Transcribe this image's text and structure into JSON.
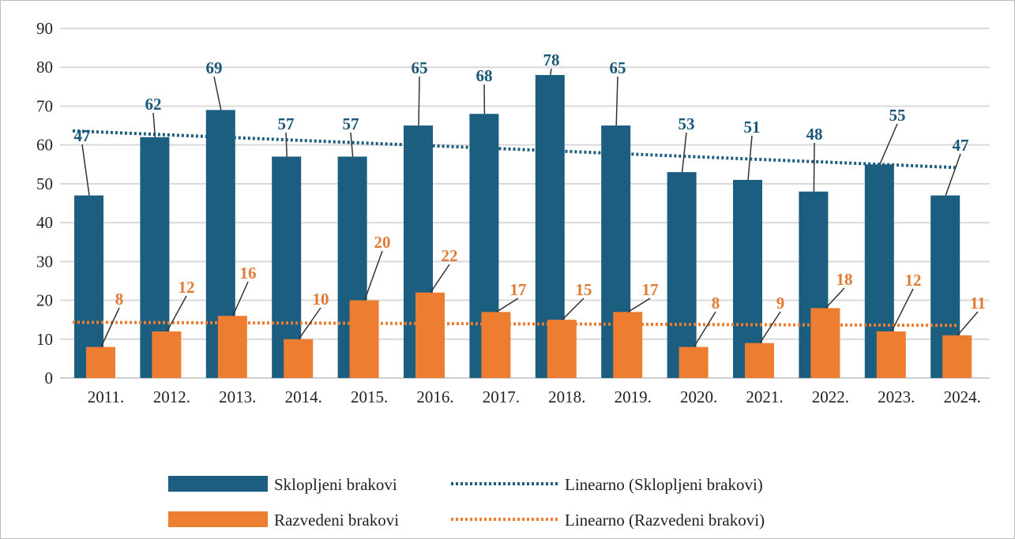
{
  "chart_data": {
    "type": "bar",
    "title": "",
    "xlabel": "",
    "ylabel": "",
    "ylim": [
      0,
      90
    ],
    "yticks": [
      "0",
      "10",
      "20",
      "30",
      "40",
      "50",
      "60",
      "70",
      "80",
      "90"
    ],
    "grid": true,
    "legend_placement": "bottom",
    "categories": [
      "2011.",
      "2012.",
      "2013.",
      "2014.",
      "2015.",
      "2016.",
      "2017.",
      "2018.",
      "2019.",
      "2020.",
      "2021.",
      "2022.",
      "2023.",
      "2024."
    ],
    "series": [
      {
        "name": "Sklopljeni brakovi",
        "color": "#1b5e80",
        "label_color": "#1a5879",
        "values": [
          47,
          62,
          69,
          57,
          57,
          65,
          68,
          78,
          65,
          53,
          51,
          48,
          55,
          47
        ]
      },
      {
        "name": "Razvedeni brakovi",
        "color": "#ed7d31",
        "label_color": "#e07a35",
        "values": [
          8,
          12,
          16,
          10,
          20,
          22,
          17,
          15,
          17,
          8,
          9,
          18,
          12,
          11
        ]
      }
    ],
    "trendlines": [
      {
        "name": "Linearno (Sklopljeni brakovi)",
        "of_series": 0,
        "type": "linear",
        "style": "dotted",
        "color": "#1b5e80"
      },
      {
        "name": "Linearno (Razvedeni brakovi)",
        "of_series": 1,
        "type": "linear",
        "style": "dotted",
        "color": "#ed7d31"
      }
    ]
  }
}
